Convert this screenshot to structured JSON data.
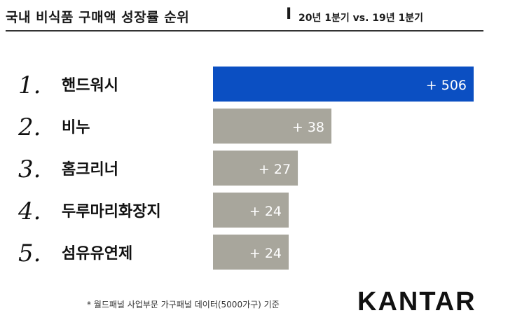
{
  "header": {
    "title": "국내 비식품 구매액 성장률 순위",
    "separator": "I",
    "subtitle": "20년 1분기 vs. 19년 1분기"
  },
  "footer": {
    "note": "* 월드패널 사업부문 가구패널 데이터(5000가구) 기준",
    "logo": "KANTAR"
  },
  "colors": {
    "highlight": "#0b4fc2",
    "bar": "#a8a69c"
  },
  "chart_data": {
    "type": "bar",
    "orientation": "horizontal",
    "ranks": [
      "1.",
      "2.",
      "3.",
      "4.",
      "5."
    ],
    "categories": [
      "핸드워시",
      "비누",
      "홈크리너",
      "두루마리화장지",
      "섬유유연제"
    ],
    "values": [
      506,
      38,
      27,
      24,
      24
    ],
    "value_labels": [
      "+ 506",
      "+ 38",
      "+ 27",
      "+ 24",
      "+ 24"
    ],
    "highlight_index": 0
  }
}
